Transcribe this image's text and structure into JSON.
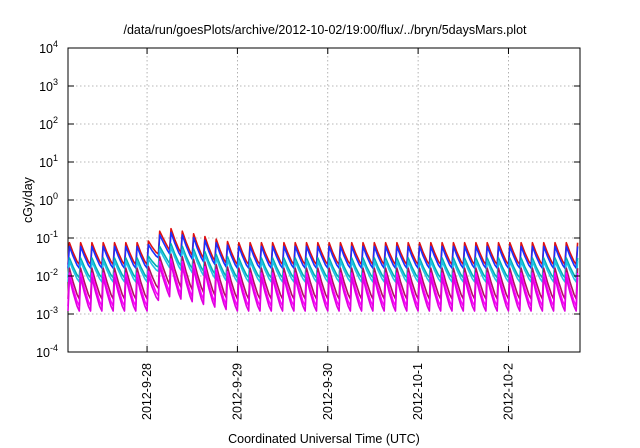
{
  "chart_data": {
    "type": "line",
    "title": "/data/run/goesPlots/archive/2012-10-02/19:00/flux/../bryn/5daysMars.plot",
    "xlabel": "Coordinated Universal Time (UTC)",
    "ylabel": "cGy/day",
    "y_scale": "log",
    "ylim": [
      0.0001,
      10000
    ],
    "y_ticks": [
      {
        "value": 0.0001,
        "base": "10",
        "exp": "-4"
      },
      {
        "value": 0.001,
        "base": "10",
        "exp": "-3"
      },
      {
        "value": 0.01,
        "base": "10",
        "exp": "-2"
      },
      {
        "value": 0.1,
        "base": "10",
        "exp": "-1"
      },
      {
        "value": 1,
        "base": "10",
        "exp": "0"
      },
      {
        "value": 10,
        "base": "10",
        "exp": "1"
      },
      {
        "value": 100,
        "base": "10",
        "exp": "2"
      },
      {
        "value": 1000,
        "base": "10",
        "exp": "3"
      },
      {
        "value": 10000,
        "base": "10",
        "exp": "4"
      }
    ],
    "xlim": [
      "2012-09-27T03:00",
      "2012-10-02T19:00"
    ],
    "x_ticks": [
      "2012-9-28",
      "2012-9-29",
      "2012-9-30",
      "2012-10-1",
      "2012-10-2"
    ],
    "x_tick_dates": [
      "2012-09-28T00:00",
      "2012-09-29T00:00",
      "2012-09-30T00:00",
      "2012-10-01T00:00",
      "2012-10-02T00:00"
    ],
    "grid": true,
    "cycle_hours": 3,
    "event": {
      "start": "2012-09-28T00:00",
      "peak": "2012-09-28T05:00",
      "end": "2012-09-29T00:00",
      "boost": 2.5
    },
    "series": [
      {
        "color": "#e01010",
        "peak": 0.075,
        "trough": 0.02
      },
      {
        "color": "#1a30ff",
        "peak": 0.06,
        "trough": 0.016
      },
      {
        "color": "#00b0b0",
        "peak": 0.03,
        "trough": 0.009
      },
      {
        "color": "#20c0e8",
        "peak": 0.025,
        "trough": 0.007
      },
      {
        "color": "#b01060",
        "peak": 0.016,
        "trough": 0.0025
      },
      {
        "color": "#ff00ff",
        "peak": 0.012,
        "trough": 0.0016
      },
      {
        "color": "#e000e0",
        "peak": 0.009,
        "trough": 0.0012
      }
    ]
  }
}
